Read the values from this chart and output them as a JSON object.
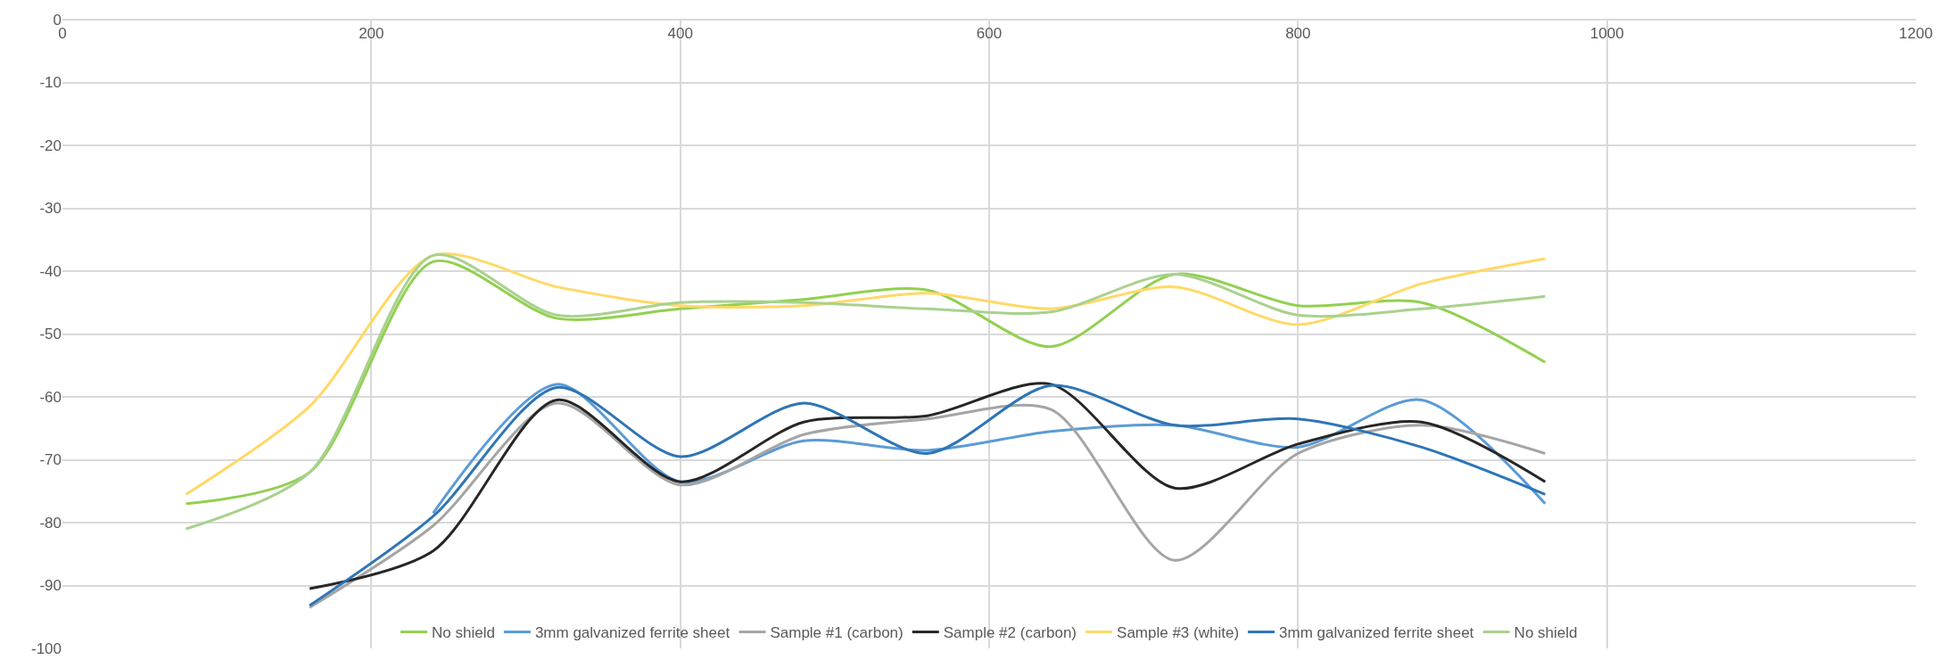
{
  "chart_data": {
    "type": "line",
    "xlim": [
      0,
      1200
    ],
    "xticks": [
      0,
      200,
      400,
      600,
      800,
      1000,
      1200
    ],
    "ylim": [
      -100,
      0
    ],
    "yticks": [
      0,
      -10,
      -20,
      -30,
      -40,
      -50,
      -60,
      -70,
      -80,
      -90,
      -100
    ],
    "grid": true,
    "legend": "bottom",
    "marker": "none",
    "line_style": "solid",
    "series": [
      {
        "name": "No shield",
        "color": "#92d050",
        "x": [
          80,
          160,
          240,
          320,
          400,
          480,
          560,
          640,
          720,
          800,
          880,
          960
        ],
        "values": [
          -77,
          -72,
          -38.5,
          -47.5,
          -46,
          -44.5,
          -43,
          -52,
          -40.5,
          -45.5,
          -45,
          -54.5
        ]
      },
      {
        "name": "3mm galvanized ferrite sheet",
        "color": "#5b9bd5",
        "x": [
          240,
          320,
          400,
          480,
          560,
          640,
          720,
          800,
          880,
          960
        ],
        "values": [
          -78.5,
          -58,
          -73.5,
          -67,
          -68.5,
          -65.5,
          -64.5,
          -68,
          -60.5,
          -77
        ]
      },
      {
        "name": "Sample #1 (carbon)",
        "color": "#a5a5a5",
        "x": [
          160,
          240,
          320,
          400,
          480,
          560,
          640,
          720,
          800,
          880,
          960
        ],
        "values": [
          -93.5,
          -80.5,
          -61,
          -74,
          -66,
          -63.5,
          -62,
          -86,
          -69,
          -64.5,
          -69
        ]
      },
      {
        "name": "Sample #2 (carbon)",
        "color": "#262626",
        "x": [
          160,
          240,
          320,
          400,
          480,
          560,
          640,
          720,
          800,
          880,
          960
        ],
        "values": [
          -90.5,
          -84.5,
          -60.5,
          -73.5,
          -64,
          -63,
          -58,
          -74.5,
          -67.5,
          -64,
          -73.5
        ]
      },
      {
        "name": "Sample #3 (white)",
        "color": "#ffd966",
        "x": [
          80,
          160,
          240,
          320,
          400,
          480,
          560,
          640,
          720,
          800,
          880,
          960
        ],
        "values": [
          -75.5,
          -61.5,
          -37.5,
          -42.5,
          -45.5,
          -45.5,
          -43.5,
          -46,
          -42.5,
          -48.5,
          -42,
          -38
        ]
      },
      {
        "name": "3mm galvanized ferrite sheet",
        "color": "#2e75b6",
        "x": [
          160,
          240,
          320,
          400,
          480,
          560,
          640,
          720,
          800,
          880,
          960
        ],
        "values": [
          -93.2,
          -79,
          -58.5,
          -69.5,
          -61,
          -69,
          -58.2,
          -64.5,
          -63.5,
          -68,
          -75.5
        ]
      },
      {
        "name": "No shield",
        "color": "#a9d18e",
        "x": [
          80,
          160,
          240,
          320,
          400,
          480,
          560,
          640,
          720,
          800,
          880,
          960
        ],
        "values": [
          -81,
          -72,
          -37.5,
          -47,
          -45,
          -45,
          -46,
          -46.5,
          -40.5,
          -47,
          -46,
          -44
        ]
      }
    ]
  }
}
